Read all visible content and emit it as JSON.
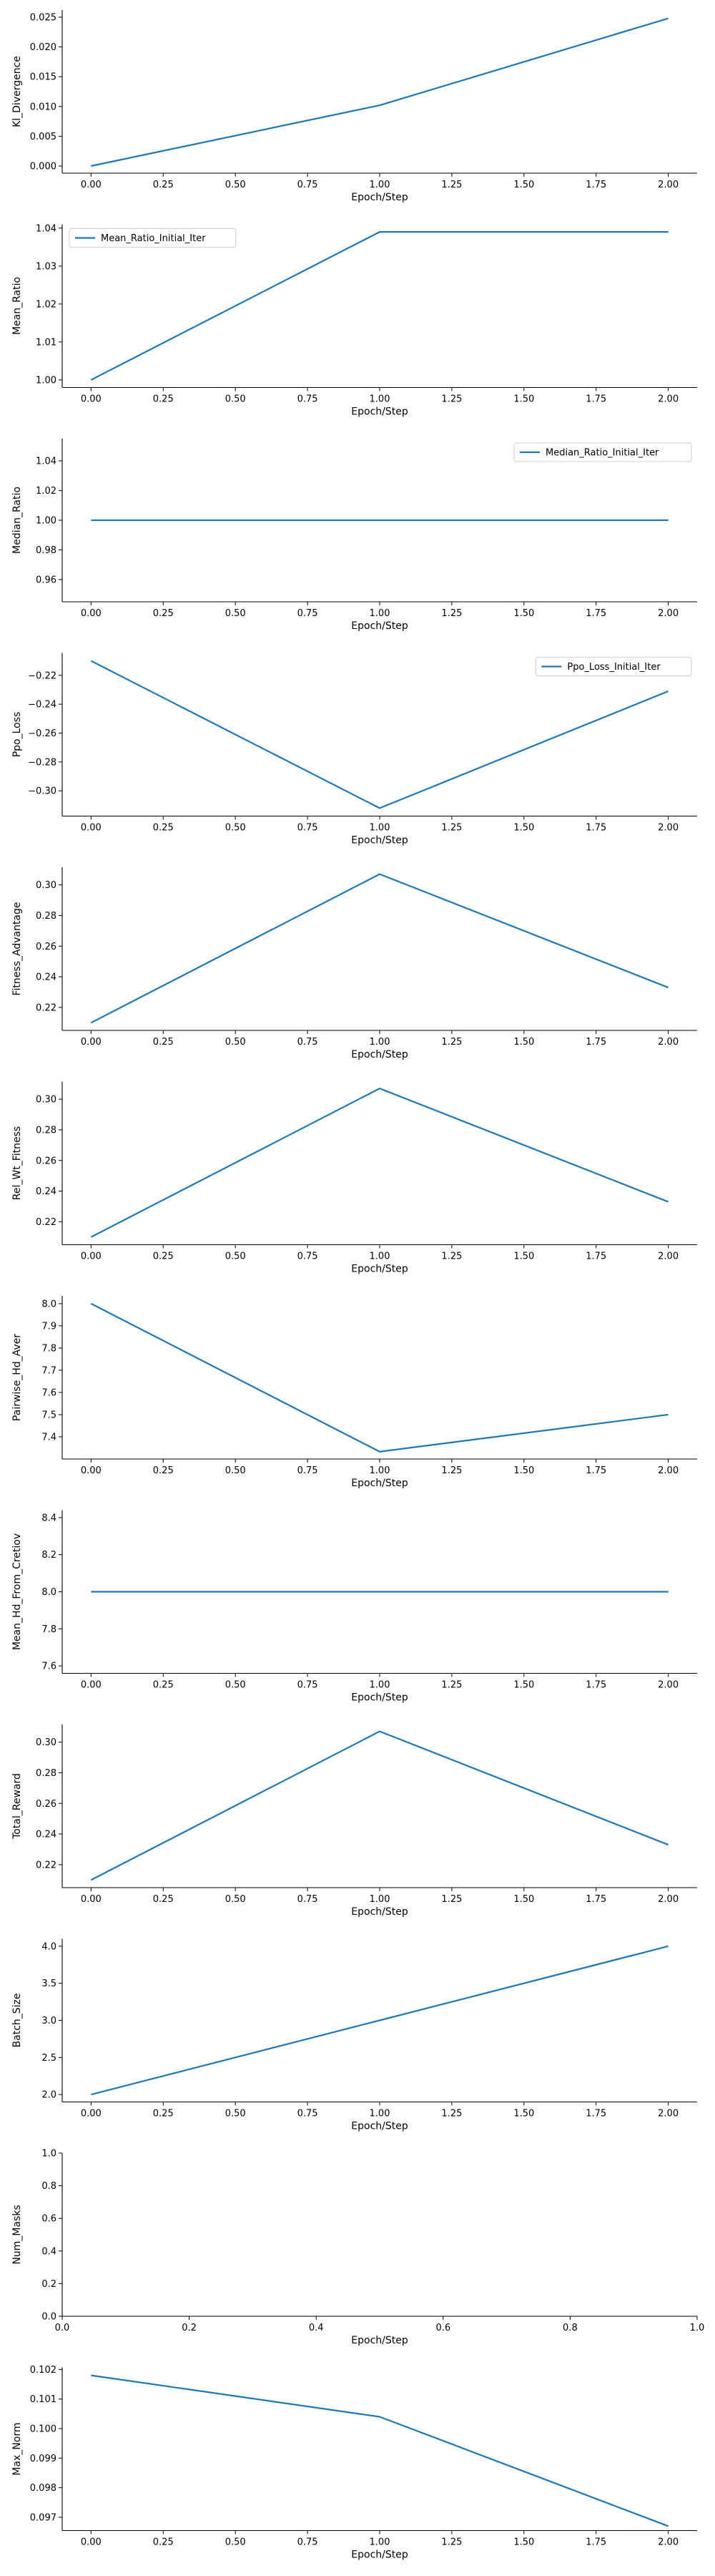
{
  "chart_data": [
    {
      "type": "line",
      "xlabel": "Epoch/Step",
      "ylabel": "Kl_Divergence",
      "xlim": [
        -0.1,
        2.1
      ],
      "ylim": [
        -0.0012,
        0.0262
      ],
      "xticks": [
        0,
        0.25,
        0.5,
        0.75,
        1,
        1.25,
        1.5,
        1.75,
        2
      ],
      "xtick_labels": [
        "0.00",
        "0.25",
        "0.50",
        "0.75",
        "1.00",
        "1.25",
        "1.50",
        "1.75",
        "2.00"
      ],
      "yticks": [
        0,
        0.005,
        0.01,
        0.015,
        0.02,
        0.025
      ],
      "ytick_labels": [
        "0.000",
        "0.005",
        "0.010",
        "0.015",
        "0.020",
        "0.025"
      ],
      "legend": null,
      "color": "#1f77b4",
      "series": [
        {
          "x": [
            0,
            1,
            2
          ],
          "y": [
            0.0,
            0.0102,
            0.0248
          ]
        }
      ]
    },
    {
      "type": "line",
      "xlabel": "Epoch/Step",
      "ylabel": "Mean_Ratio",
      "xlim": [
        -0.1,
        2.1
      ],
      "ylim": [
        0.998,
        1.041
      ],
      "xticks": [
        0,
        0.25,
        0.5,
        0.75,
        1,
        1.25,
        1.5,
        1.75,
        2
      ],
      "xtick_labels": [
        "0.00",
        "0.25",
        "0.50",
        "0.75",
        "1.00",
        "1.25",
        "1.50",
        "1.75",
        "2.00"
      ],
      "yticks": [
        1.0,
        1.01,
        1.02,
        1.03,
        1.04
      ],
      "ytick_labels": [
        "1.00",
        "1.01",
        "1.02",
        "1.03",
        "1.04"
      ],
      "legend": "upper-left",
      "color": "#1f77b4",
      "series": [
        {
          "name": "Mean_Ratio_Initial_Iter",
          "x": [
            0,
            1,
            2
          ],
          "y": [
            1.0,
            1.039,
            1.039
          ]
        }
      ]
    },
    {
      "type": "line",
      "xlabel": "Epoch/Step",
      "ylabel": "Median_Ratio",
      "xlim": [
        -0.1,
        2.1
      ],
      "ylim": [
        0.945,
        1.055
      ],
      "xticks": [
        0,
        0.25,
        0.5,
        0.75,
        1,
        1.25,
        1.5,
        1.75,
        2
      ],
      "xtick_labels": [
        "0.00",
        "0.25",
        "0.50",
        "0.75",
        "1.00",
        "1.25",
        "1.50",
        "1.75",
        "2.00"
      ],
      "yticks": [
        0.96,
        0.98,
        1.0,
        1.02,
        1.04
      ],
      "ytick_labels": [
        "0.96",
        "0.98",
        "1.00",
        "1.02",
        "1.04"
      ],
      "legend": "upper-right",
      "color": "#1f77b4",
      "series": [
        {
          "name": "Median_Ratio_Initial_Iter",
          "x": [
            0,
            1,
            2
          ],
          "y": [
            1.0,
            1.0,
            1.0
          ]
        }
      ]
    },
    {
      "type": "line",
      "xlabel": "Epoch/Step",
      "ylabel": "Ppo_Loss",
      "xlim": [
        -0.1,
        2.1
      ],
      "ylim": [
        -0.3175,
        -0.2045
      ],
      "xticks": [
        0,
        0.25,
        0.5,
        0.75,
        1,
        1.25,
        1.5,
        1.75,
        2
      ],
      "xtick_labels": [
        "0.00",
        "0.25",
        "0.50",
        "0.75",
        "1.00",
        "1.25",
        "1.50",
        "1.75",
        "2.00"
      ],
      "yticks": [
        -0.3,
        -0.28,
        -0.26,
        -0.24,
        -0.22
      ],
      "ytick_labels": [
        "−0.30",
        "−0.28",
        "−0.26",
        "−0.24",
        "−0.22"
      ],
      "legend": "upper-right",
      "color": "#1f77b4",
      "series": [
        {
          "name": "Ppo_Loss_Initial_Iter",
          "x": [
            0,
            1,
            2
          ],
          "y": [
            -0.21,
            -0.312,
            -0.231
          ]
        }
      ]
    },
    {
      "type": "line",
      "xlabel": "Epoch/Step",
      "ylabel": "Fitness_Advantage",
      "xlim": [
        -0.1,
        2.1
      ],
      "ylim": [
        0.205,
        0.3115
      ],
      "xticks": [
        0,
        0.25,
        0.5,
        0.75,
        1,
        1.25,
        1.5,
        1.75,
        2
      ],
      "xtick_labels": [
        "0.00",
        "0.25",
        "0.50",
        "0.75",
        "1.00",
        "1.25",
        "1.50",
        "1.75",
        "2.00"
      ],
      "yticks": [
        0.22,
        0.24,
        0.26,
        0.28,
        0.3
      ],
      "ytick_labels": [
        "0.22",
        "0.24",
        "0.26",
        "0.28",
        "0.30"
      ],
      "legend": null,
      "color": "#1f77b4",
      "series": [
        {
          "x": [
            0,
            1,
            2
          ],
          "y": [
            0.21,
            0.307,
            0.233
          ]
        }
      ]
    },
    {
      "type": "line",
      "xlabel": "Epoch/Step",
      "ylabel": "Rel_Wt_Fitness",
      "xlim": [
        -0.1,
        2.1
      ],
      "ylim": [
        0.205,
        0.3115
      ],
      "xticks": [
        0,
        0.25,
        0.5,
        0.75,
        1,
        1.25,
        1.5,
        1.75,
        2
      ],
      "xtick_labels": [
        "0.00",
        "0.25",
        "0.50",
        "0.75",
        "1.00",
        "1.25",
        "1.50",
        "1.75",
        "2.00"
      ],
      "yticks": [
        0.22,
        0.24,
        0.26,
        0.28,
        0.3
      ],
      "ytick_labels": [
        "0.22",
        "0.24",
        "0.26",
        "0.28",
        "0.30"
      ],
      "legend": null,
      "color": "#1f77b4",
      "series": [
        {
          "x": [
            0,
            1,
            2
          ],
          "y": [
            0.21,
            0.307,
            0.233
          ]
        }
      ]
    },
    {
      "type": "line",
      "xlabel": "Epoch/Step",
      "ylabel": "Pairwise_Hd_Aver",
      "xlim": [
        -0.1,
        2.1
      ],
      "ylim": [
        7.3,
        8.035
      ],
      "xticks": [
        0,
        0.25,
        0.5,
        0.75,
        1,
        1.25,
        1.5,
        1.75,
        2
      ],
      "xtick_labels": [
        "0.00",
        "0.25",
        "0.50",
        "0.75",
        "1.00",
        "1.25",
        "1.50",
        "1.75",
        "2.00"
      ],
      "yticks": [
        7.4,
        7.5,
        7.6,
        7.7,
        7.8,
        7.9,
        8.0
      ],
      "ytick_labels": [
        "7.4",
        "7.5",
        "7.6",
        "7.7",
        "7.8",
        "7.9",
        "8.0"
      ],
      "legend": null,
      "color": "#1f77b4",
      "series": [
        {
          "x": [
            0,
            1,
            2
          ],
          "y": [
            8.0,
            7.333,
            7.5
          ]
        }
      ]
    },
    {
      "type": "line",
      "xlabel": "Epoch/Step",
      "ylabel": "Mean_Hd_From_Cretiov",
      "xlim": [
        -0.1,
        2.1
      ],
      "ylim": [
        7.56,
        8.44
      ],
      "xticks": [
        0,
        0.25,
        0.5,
        0.75,
        1,
        1.25,
        1.5,
        1.75,
        2
      ],
      "xtick_labels": [
        "0.00",
        "0.25",
        "0.50",
        "0.75",
        "1.00",
        "1.25",
        "1.50",
        "1.75",
        "2.00"
      ],
      "yticks": [
        7.6,
        7.8,
        8.0,
        8.2,
        8.4
      ],
      "ytick_labels": [
        "7.6",
        "7.8",
        "8.0",
        "8.2",
        "8.4"
      ],
      "legend": null,
      "color": "#1f77b4",
      "series": [
        {
          "x": [
            0,
            1,
            2
          ],
          "y": [
            8.0,
            8.0,
            8.0
          ]
        }
      ]
    },
    {
      "type": "line",
      "xlabel": "Epoch/Step",
      "ylabel": "Total_Reward",
      "xlim": [
        -0.1,
        2.1
      ],
      "ylim": [
        0.205,
        0.3115
      ],
      "xticks": [
        0,
        0.25,
        0.5,
        0.75,
        1,
        1.25,
        1.5,
        1.75,
        2
      ],
      "xtick_labels": [
        "0.00",
        "0.25",
        "0.50",
        "0.75",
        "1.00",
        "1.25",
        "1.50",
        "1.75",
        "2.00"
      ],
      "yticks": [
        0.22,
        0.24,
        0.26,
        0.28,
        0.3
      ],
      "ytick_labels": [
        "0.22",
        "0.24",
        "0.26",
        "0.28",
        "0.30"
      ],
      "legend": null,
      "color": "#1f77b4",
      "series": [
        {
          "x": [
            0,
            1,
            2
          ],
          "y": [
            0.21,
            0.307,
            0.233
          ]
        }
      ]
    },
    {
      "type": "line",
      "xlabel": "Epoch/Step",
      "ylabel": "Batch_Size",
      "xlim": [
        -0.1,
        2.1
      ],
      "ylim": [
        1.9,
        4.1
      ],
      "xticks": [
        0,
        0.25,
        0.5,
        0.75,
        1,
        1.25,
        1.5,
        1.75,
        2
      ],
      "xtick_labels": [
        "0.00",
        "0.25",
        "0.50",
        "0.75",
        "1.00",
        "1.25",
        "1.50",
        "1.75",
        "2.00"
      ],
      "yticks": [
        2.0,
        2.5,
        3.0,
        3.5,
        4.0
      ],
      "ytick_labels": [
        "2.0",
        "2.5",
        "3.0",
        "3.5",
        "4.0"
      ],
      "legend": null,
      "color": "#1f77b4",
      "series": [
        {
          "x": [
            0,
            1,
            2
          ],
          "y": [
            2.0,
            3.0,
            4.0
          ]
        }
      ]
    },
    {
      "type": "line",
      "xlabel": "Epoch/Step",
      "ylabel": "Num_Masks",
      "xlim": [
        0,
        1
      ],
      "ylim": [
        0,
        1
      ],
      "xticks": [
        0,
        0.2,
        0.4,
        0.6,
        0.8,
        1.0
      ],
      "xtick_labels": [
        "0.0",
        "0.2",
        "0.4",
        "0.6",
        "0.8",
        "1.0"
      ],
      "yticks": [
        0,
        0.2,
        0.4,
        0.6,
        0.8,
        1.0
      ],
      "ytick_labels": [
        "0.0",
        "0.2",
        "0.4",
        "0.6",
        "0.8",
        "1.0"
      ],
      "legend": null,
      "color": "#1f77b4",
      "series": []
    },
    {
      "type": "line",
      "xlabel": "Epoch/Step",
      "ylabel": "Max_Norm",
      "xlim": [
        -0.1,
        2.1
      ],
      "ylim": [
        0.09655,
        0.10207
      ],
      "xticks": [
        0,
        0.25,
        0.5,
        0.75,
        1,
        1.25,
        1.5,
        1.75,
        2
      ],
      "xtick_labels": [
        "0.00",
        "0.25",
        "0.50",
        "0.75",
        "1.00",
        "1.25",
        "1.50",
        "1.75",
        "2.00"
      ],
      "yticks": [
        0.097,
        0.098,
        0.099,
        0.1,
        0.101,
        0.102
      ],
      "ytick_labels": [
        "0.097",
        "0.098",
        "0.099",
        "0.100",
        "0.101",
        "0.102"
      ],
      "legend": null,
      "color": "#1f77b4",
      "series": [
        {
          "x": [
            0,
            1,
            2
          ],
          "y": [
            0.1018,
            0.1004,
            0.0967
          ]
        }
      ]
    }
  ]
}
